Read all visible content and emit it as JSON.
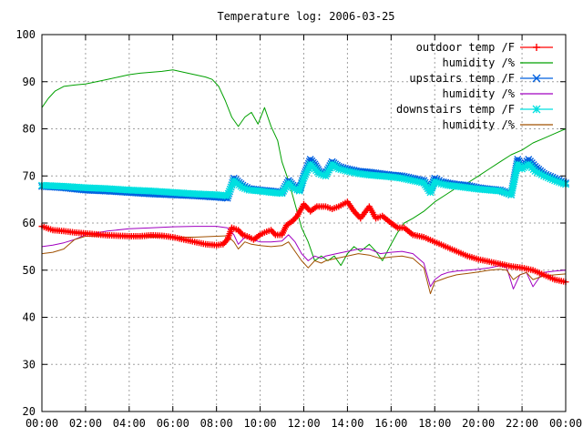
{
  "chart_data": {
    "type": "line",
    "title": "Temperature log: 2006-03-25",
    "xlabel": "",
    "ylabel": "",
    "xlim": [
      "00:00",
      "24:00"
    ],
    "ylim": [
      20,
      100
    ],
    "grid": true,
    "legend_position": "top-right",
    "x_ticks": [
      "00:00",
      "02:00",
      "04:00",
      "06:00",
      "08:00",
      "10:00",
      "12:00",
      "14:00",
      "16:00",
      "18:00",
      "20:00",
      "22:00",
      "00:00"
    ],
    "y_ticks": [
      20,
      30,
      40,
      50,
      60,
      70,
      80,
      90,
      100
    ],
    "series": [
      {
        "name": "outdoor temp /F",
        "color": "#ff0000",
        "marker": "plus",
        "x_hours": [
          0,
          0.5,
          1,
          1.5,
          2,
          2.5,
          3,
          3.5,
          4,
          4.5,
          5,
          5.5,
          6,
          6.5,
          7,
          7.5,
          8,
          8.3,
          8.5,
          8.7,
          9,
          9.2,
          9.5,
          9.7,
          10,
          10.2,
          10.5,
          10.7,
          11,
          11.2,
          11.5,
          11.7,
          12,
          12.3,
          12.6,
          13,
          13.3,
          13.6,
          14,
          14.3,
          14.6,
          15,
          15.3,
          15.6,
          16,
          16.3,
          16.6,
          17,
          17.5,
          18,
          18.5,
          19,
          19.5,
          20,
          20.5,
          21,
          21.5,
          22,
          22.5,
          23,
          23.5,
          24
        ],
        "values": [
          59.3,
          58.5,
          58.3,
          58.0,
          57.8,
          57.6,
          57.4,
          57.3,
          57.2,
          57.2,
          57.4,
          57.3,
          57.0,
          56.5,
          56.0,
          55.5,
          55.3,
          55.5,
          56.5,
          59.0,
          58.5,
          57.5,
          57.0,
          56.5,
          57.5,
          58.0,
          58.5,
          57.5,
          57.5,
          59.5,
          60.5,
          61.5,
          64.0,
          62.5,
          63.5,
          63.5,
          63.0,
          63.5,
          64.5,
          62.5,
          61.0,
          63.5,
          61.0,
          61.5,
          60.0,
          59.0,
          59.0,
          57.5,
          57.0,
          56.0,
          55.0,
          54.0,
          53.0,
          52.3,
          51.8,
          51.3,
          50.8,
          50.5,
          50.0,
          49.0,
          48.0,
          47.5
        ]
      },
      {
        "name": "humidity /%",
        "color": "#00a000",
        "marker": "none",
        "x_hours": [
          0,
          0.3,
          0.6,
          1,
          1.5,
          2,
          2.5,
          3,
          3.5,
          4,
          4.5,
          5,
          5.5,
          6,
          6.5,
          7,
          7.5,
          7.8,
          8.1,
          8.4,
          8.7,
          9,
          9.3,
          9.6,
          9.9,
          10.2,
          10.5,
          10.8,
          11,
          11.3,
          11.6,
          11.9,
          12.2,
          12.5,
          12.8,
          13.1,
          13.4,
          13.7,
          14,
          14.3,
          14.6,
          15,
          15.3,
          15.6,
          16,
          16.3,
          16.6,
          17,
          17.5,
          18,
          18.5,
          19,
          19.5,
          20,
          20.5,
          21,
          21.5,
          22,
          22.5,
          23,
          23.5,
          24
        ],
        "values": [
          84.5,
          86.5,
          88.0,
          89.0,
          89.3,
          89.5,
          90.0,
          90.5,
          91.0,
          91.5,
          91.8,
          92.0,
          92.2,
          92.5,
          92.0,
          91.5,
          91.0,
          90.5,
          89.0,
          86.0,
          82.5,
          80.5,
          82.5,
          83.5,
          81.0,
          84.5,
          80.5,
          77.5,
          73.0,
          69.0,
          64.0,
          59.0,
          56.0,
          52.0,
          53.0,
          52.0,
          53.0,
          51.0,
          53.5,
          55.0,
          54.0,
          55.5,
          54.0,
          52.0,
          55.5,
          58.0,
          60.0,
          61.0,
          62.5,
          64.5,
          66.0,
          67.5,
          68.5,
          70.0,
          71.5,
          73.0,
          74.5,
          75.5,
          77.0,
          78.0,
          79.0,
          80.0
        ]
      },
      {
        "name": "upstairs temp /F",
        "color": "#0060e0",
        "marker": "cross",
        "x_hours": [
          0,
          1,
          2,
          3,
          4,
          5,
          6,
          7,
          8,
          8.5,
          8.8,
          9.2,
          9.5,
          10,
          10.5,
          11,
          11.3,
          11.5,
          11.8,
          12,
          12.3,
          12.5,
          12.7,
          13,
          13.3,
          13.6,
          14,
          14.5,
          15,
          15.5,
          16,
          16.5,
          17,
          17.5,
          17.8,
          18,
          18.3,
          18.6,
          19,
          19.5,
          20,
          20.5,
          21,
          21.3,
          21.5,
          21.8,
          22,
          22.3,
          22.6,
          23,
          23.5,
          24
        ],
        "values": [
          67.8,
          67.5,
          67.0,
          66.8,
          66.5,
          66.2,
          66.0,
          65.8,
          65.5,
          65.3,
          69.5,
          68.0,
          67.3,
          67.0,
          66.8,
          66.5,
          69.0,
          68.0,
          67.0,
          70.0,
          73.5,
          72.5,
          71.0,
          70.5,
          73.0,
          72.0,
          71.5,
          71.0,
          70.8,
          70.5,
          70.2,
          70.0,
          69.5,
          69.0,
          67.0,
          69.5,
          68.8,
          68.5,
          68.2,
          68.0,
          67.5,
          67.2,
          67.0,
          66.5,
          66.0,
          73.5,
          72.0,
          73.5,
          72.0,
          70.5,
          69.5,
          68.5
        ]
      },
      {
        "name": "humidity /%",
        "color": "#a000c0",
        "marker": "none",
        "x_hours": [
          0,
          0.5,
          1,
          1.5,
          2,
          3,
          4,
          5,
          6,
          7,
          8,
          8.5,
          8.8,
          9,
          9.3,
          9.6,
          10,
          10.5,
          11,
          11.3,
          11.6,
          11.9,
          12.2,
          12.5,
          12.8,
          13,
          13.5,
          14,
          14.5,
          15,
          15.5,
          16,
          16.5,
          17,
          17.5,
          17.8,
          18,
          18.3,
          18.6,
          19,
          19.5,
          20,
          20.5,
          21,
          21.3,
          21.6,
          21.9,
          22.2,
          22.5,
          22.8,
          23,
          23.5,
          24
        ],
        "values": [
          55.0,
          55.3,
          55.8,
          56.5,
          57.5,
          58.3,
          58.8,
          59.0,
          59.2,
          59.3,
          59.3,
          59.0,
          57.5,
          55.5,
          57.0,
          56.5,
          56.0,
          56.0,
          56.2,
          57.5,
          56.0,
          53.5,
          52.0,
          53.0,
          52.5,
          53.0,
          53.5,
          54.0,
          54.5,
          54.5,
          53.5,
          53.8,
          54.0,
          53.5,
          51.5,
          46.5,
          48.0,
          49.0,
          49.5,
          49.8,
          50.0,
          50.2,
          50.5,
          51.0,
          50.5,
          46.0,
          49.0,
          49.5,
          46.5,
          48.5,
          49.5,
          49.8,
          50.0
        ]
      },
      {
        "name": "downstairs temp /F",
        "color": "#00e0e0",
        "marker": "star",
        "x_hours": [
          0,
          1,
          2,
          3,
          4,
          5,
          6,
          7,
          8,
          8.5,
          8.8,
          9.2,
          9.5,
          10,
          10.5,
          11,
          11.3,
          11.5,
          11.8,
          12,
          12.3,
          12.5,
          12.7,
          13,
          13.3,
          13.6,
          14,
          14.5,
          15,
          15.5,
          16,
          16.5,
          17,
          17.5,
          17.8,
          18,
          18.3,
          18.6,
          19,
          19.5,
          20,
          20.5,
          21,
          21.3,
          21.5,
          21.8,
          22,
          22.3,
          22.6,
          23,
          23.5,
          24
        ],
        "values": [
          68.0,
          67.8,
          67.5,
          67.3,
          67.0,
          66.8,
          66.5,
          66.2,
          66.0,
          65.8,
          69.0,
          67.5,
          67.0,
          66.8,
          66.5,
          66.3,
          68.5,
          67.5,
          66.8,
          69.5,
          72.5,
          71.5,
          70.5,
          70.0,
          72.5,
          71.5,
          71.0,
          70.5,
          70.2,
          70.0,
          69.8,
          69.5,
          69.0,
          68.5,
          66.5,
          68.8,
          68.3,
          68.0,
          67.8,
          67.5,
          67.2,
          67.0,
          66.8,
          66.3,
          66.0,
          72.5,
          71.5,
          72.5,
          71.0,
          70.0,
          69.0,
          68.2
        ]
      },
      {
        "name": "humidity /%",
        "color": "#a05000",
        "marker": "none",
        "x_hours": [
          0,
          0.5,
          1,
          1.5,
          2,
          3,
          4,
          5,
          6,
          7,
          8,
          8.5,
          8.8,
          9,
          9.3,
          9.6,
          10,
          10.5,
          11,
          11.3,
          11.6,
          11.9,
          12.2,
          12.5,
          12.8,
          13,
          13.5,
          14,
          14.5,
          15,
          15.5,
          16,
          16.5,
          17,
          17.5,
          17.8,
          18,
          18.3,
          18.6,
          19,
          19.5,
          20,
          20.5,
          21,
          21.3,
          21.6,
          21.9,
          22.2,
          22.5,
          22.8,
          23,
          23.5,
          24
        ],
        "values": [
          53.5,
          53.8,
          54.5,
          56.5,
          57.2,
          57.3,
          57.2,
          57.0,
          57.0,
          57.0,
          57.2,
          57.3,
          56.0,
          54.5,
          56.0,
          55.5,
          55.2,
          55.0,
          55.2,
          56.0,
          54.0,
          52.0,
          50.5,
          52.0,
          51.5,
          52.0,
          52.5,
          53.0,
          53.5,
          53.2,
          52.5,
          52.8,
          53.0,
          52.5,
          50.5,
          45.0,
          47.5,
          48.0,
          48.5,
          49.0,
          49.3,
          49.6,
          50.0,
          50.2,
          50.0,
          48.0,
          49.0,
          49.5,
          48.0,
          48.5,
          48.8,
          49.0,
          49.2
        ]
      }
    ]
  }
}
